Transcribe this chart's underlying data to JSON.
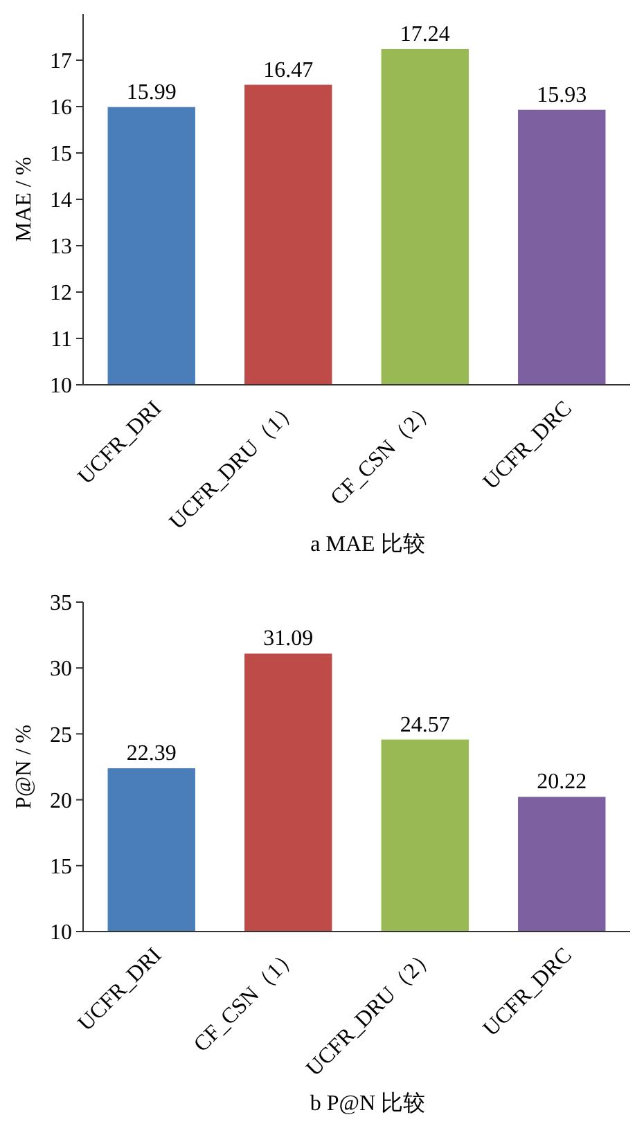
{
  "chart_data": [
    {
      "type": "bar",
      "title": "a  MAE 比较",
      "ylabel": "MAE / %",
      "categories": [
        "UCFR_DRI",
        "UCFR_DRU（1）",
        "CF_CSN（2）",
        "UCFR_DRC"
      ],
      "values": [
        15.99,
        16.47,
        17.24,
        15.93
      ],
      "colors": [
        "#4a7ebb",
        "#be4b48",
        "#98b954",
        "#7d60a0"
      ],
      "ylim": [
        10,
        18
      ],
      "yticks": [
        10,
        11,
        12,
        13,
        14,
        15,
        16,
        17
      ],
      "data_labels": true
    },
    {
      "type": "bar",
      "title": "b  P@N 比较",
      "ylabel": "P@N / %",
      "categories": [
        "UCFR_DRI",
        "CF_CSN（1）",
        "UCFR_DRU（2）",
        "UCFR_DRC"
      ],
      "values": [
        22.39,
        31.09,
        24.57,
        20.22
      ],
      "colors": [
        "#4a7ebb",
        "#be4b48",
        "#98b954",
        "#7d60a0"
      ],
      "ylim": [
        10,
        35
      ],
      "yticks": [
        10,
        15,
        20,
        25,
        30,
        35
      ],
      "data_labels": true
    }
  ]
}
